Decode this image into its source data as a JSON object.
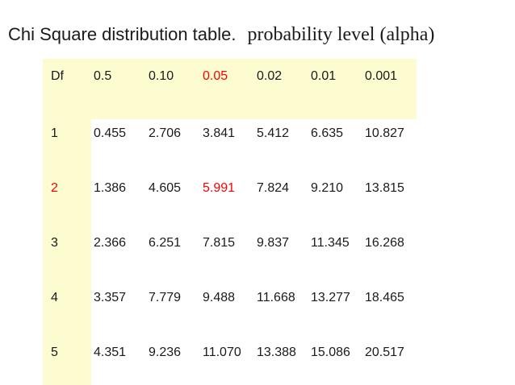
{
  "title": {
    "main": "Chi Square distribution table.",
    "sub": "probability level (alpha)"
  },
  "chart_data": {
    "type": "table",
    "title": "Chi Square distribution table.",
    "subtitle": "probability level (alpha)",
    "columns": [
      "Df",
      "0.5",
      "0.10",
      "0.05",
      "0.02",
      "0.01",
      "0.001"
    ],
    "rows": [
      {
        "df": "1",
        "values": [
          "0.455",
          "2.706",
          "3.841",
          "5.412",
          "6.635",
          "10.827"
        ]
      },
      {
        "df": "2",
        "values": [
          "1.386",
          "4.605",
          "5.991",
          "7.824",
          "9.210",
          "13.815"
        ]
      },
      {
        "df": "3",
        "values": [
          "2.366",
          "6.251",
          "7.815",
          "9.837",
          "11.345",
          "16.268"
        ]
      },
      {
        "df": "4",
        "values": [
          "3.357",
          "7.779",
          "9.488",
          "11.668",
          "13.277",
          "18.465"
        ]
      },
      {
        "df": "5",
        "values": [
          "4.351",
          "9.236",
          "11.070",
          "13.388",
          "15.086",
          "20.517"
        ]
      }
    ],
    "highlights": {
      "red_header_value": "0.05",
      "red_row_label": "2",
      "red_cell_value": "5.991",
      "highlighted_regions": "header row and Df column"
    },
    "layout_hints": {
      "grid": "off",
      "borders": "none",
      "header_background": "#FDFBD0",
      "df_column_background": "#FDFBD0"
    }
  },
  "colors": {
    "highlight_background": "#FDFBD0",
    "accent_red": "#FF0000",
    "text": "#1A1A1A",
    "page_background": "#FFFFFF"
  }
}
